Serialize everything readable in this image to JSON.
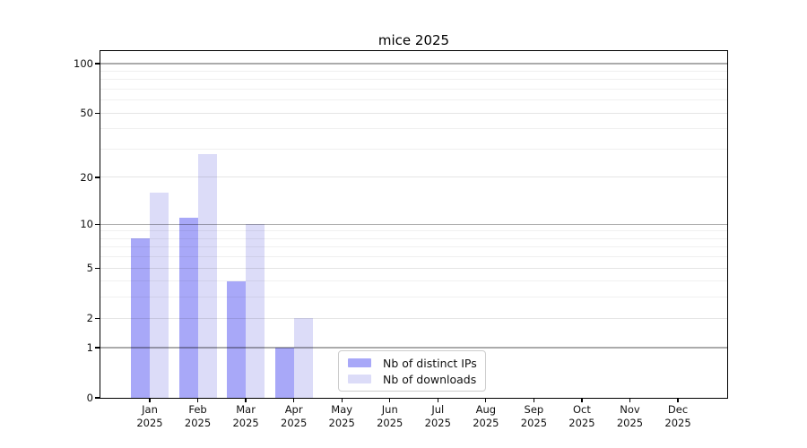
{
  "chart_data": {
    "type": "bar",
    "title": "mice 2025",
    "categories": [
      "Jan 2025",
      "Feb 2025",
      "Mar 2025",
      "Apr 2025",
      "May 2025",
      "Jun 2025",
      "Jul 2025",
      "Aug 2025",
      "Sep 2025",
      "Oct 2025",
      "Nov 2025",
      "Dec 2025"
    ],
    "series": [
      {
        "name": "Nb of distinct IPs",
        "color": "#a8a8f8",
        "values": [
          8,
          11,
          4,
          1,
          0,
          0,
          0,
          0,
          0,
          0,
          0,
          0
        ]
      },
      {
        "name": "Nb of downloads",
        "color": "#dcdcf8",
        "values": [
          16,
          28,
          10,
          2,
          0,
          0,
          0,
          0,
          0,
          0,
          0,
          0
        ]
      }
    ],
    "xlabel": "",
    "ylabel": "",
    "yscale": "log1p",
    "ylim": [
      0,
      119
    ],
    "y_tick_values": [
      0,
      1,
      2,
      5,
      10,
      20,
      50,
      100
    ],
    "gridlines": {
      "major": [
        1,
        10,
        100
      ],
      "mid": [
        2,
        5,
        20,
        50
      ],
      "minor": [
        3,
        4,
        6,
        7,
        8,
        9,
        30,
        40,
        60,
        70,
        80,
        90
      ]
    },
    "grid": "on",
    "legend_position": "lower center"
  },
  "colors": {
    "frame": "#000000",
    "background": "#ffffff",
    "legend_border": "#cccccc"
  }
}
